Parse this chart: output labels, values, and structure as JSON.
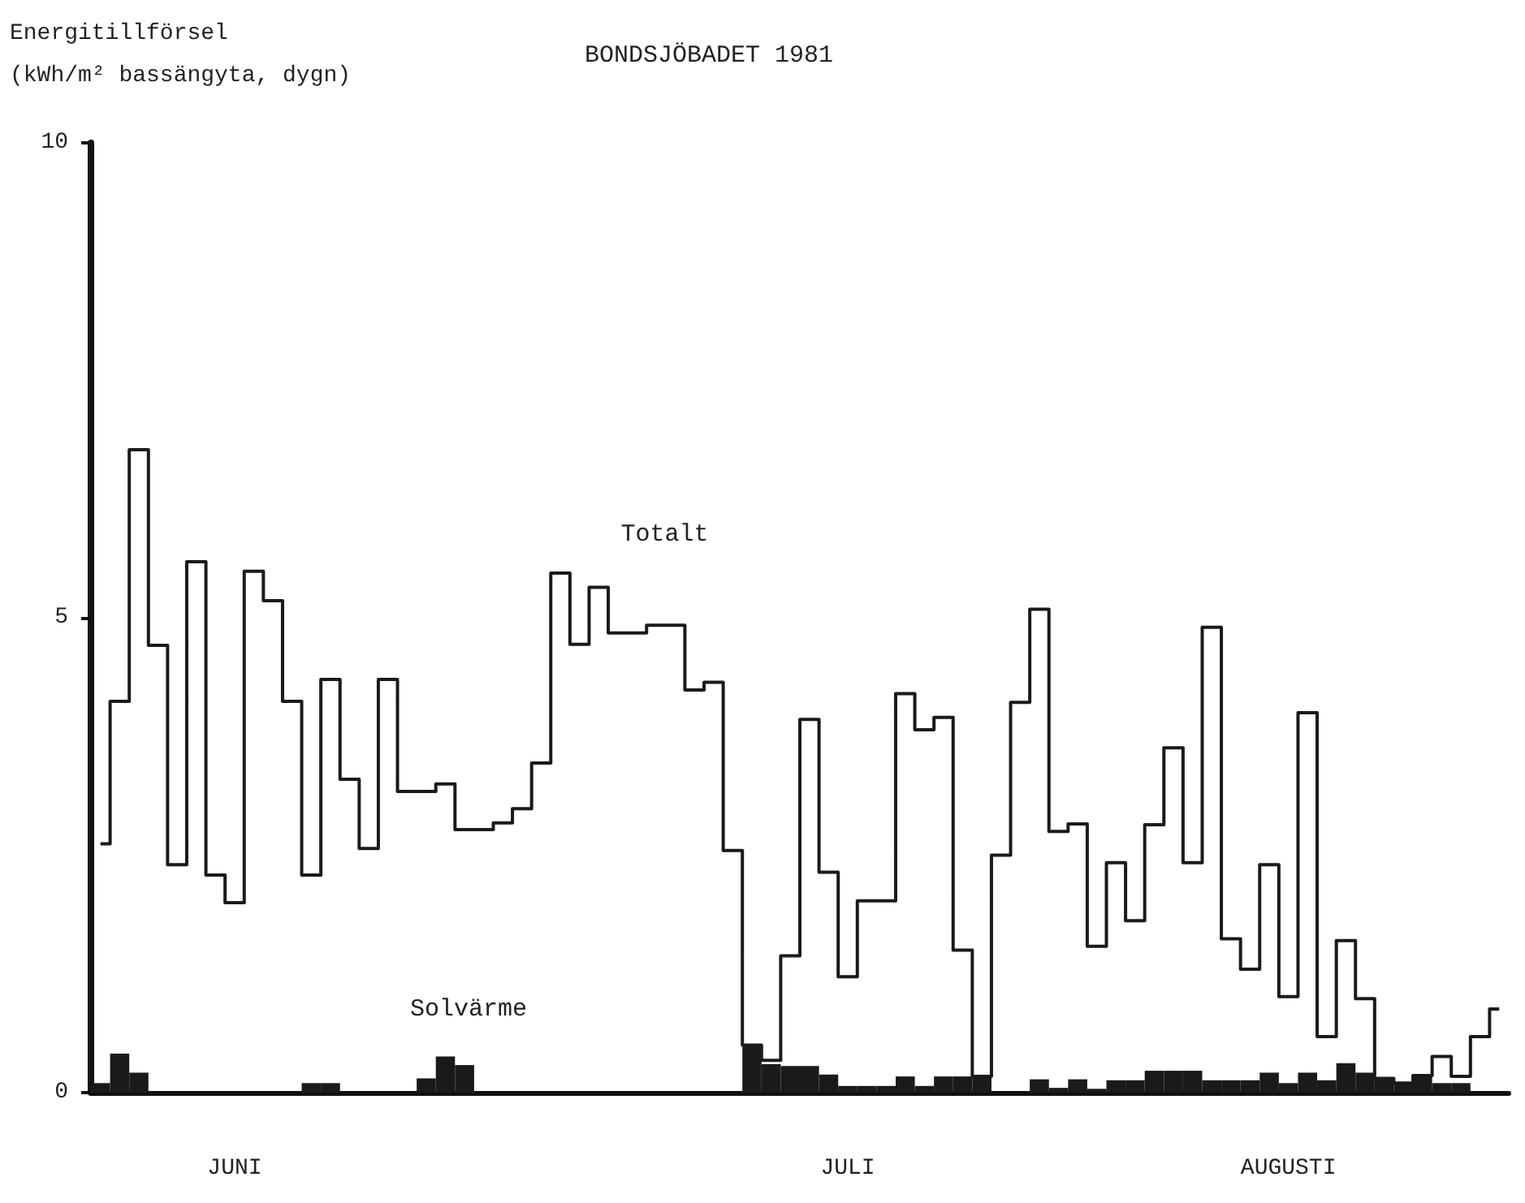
{
  "chart_data": {
    "type": "step",
    "title": "BONDSJÖBADET 1981",
    "ylabel": "Energitillförsel\n(kWh/m² bassängyta, dygn)",
    "categories": [
      null,
      null,
      null,
      null,
      null,
      null,
      null,
      "JUNI",
      null,
      null,
      null,
      null,
      null,
      null,
      null,
      null,
      null,
      null,
      null,
      null,
      null,
      null,
      null,
      null,
      null,
      null,
      null,
      null,
      null,
      null,
      null,
      null,
      null,
      null,
      null,
      null,
      null,
      null,
      null,
      "JULI",
      null,
      null,
      null,
      null,
      null,
      null,
      null,
      null,
      null,
      null,
      null,
      null,
      null,
      null,
      null,
      null,
      null,
      null,
      null,
      null,
      null,
      null,
      "AUGUSTI",
      null,
      null,
      null,
      null,
      null,
      null,
      null,
      null,
      null,
      null,
      null
    ],
    "series": [
      {
        "name": "Totalt",
        "color": "#1a1a1a",
        "values": [
          2.62,
          4.12,
          6.77,
          4.71,
          2.4,
          5.59,
          2.29,
          2.0,
          5.49,
          5.18,
          4.12,
          2.29,
          4.35,
          3.3,
          2.57,
          4.35,
          3.17,
          3.17,
          3.25,
          2.77,
          2.77,
          2.84,
          2.99,
          3.47,
          5.47,
          4.72,
          5.32,
          4.84,
          4.84,
          4.92,
          4.92,
          4.24,
          4.32,
          2.55,
          0.5,
          0.34,
          1.44,
          3.93,
          2.32,
          1.22,
          2.02,
          2.02,
          4.2,
          3.82,
          3.95,
          1.5,
          0.17,
          2.5,
          4.11,
          5.09,
          2.75,
          2.83,
          1.54,
          2.42,
          1.81,
          2.82,
          3.63,
          2.42,
          4.9,
          1.62,
          1.3,
          2.4,
          1.01,
          4.0,
          0.59,
          1.6,
          0.99,
          0.15,
          0.1,
          0.18,
          0.38,
          0.17,
          0.59,
          0.88
        ]
      },
      {
        "name": "Solvärme",
        "type": "bar",
        "color": "#1a1a1a",
        "values": [
          0.1,
          0.41,
          0.21,
          0,
          0,
          0,
          0,
          0,
          0,
          0,
          0,
          0.1,
          0.1,
          0,
          0,
          0,
          0,
          0.15,
          0.38,
          0.29,
          0,
          0,
          0,
          0,
          0,
          0,
          0,
          0,
          0,
          0,
          0,
          0,
          0,
          0,
          0.5,
          0.3,
          0.28,
          0.28,
          0.19,
          0.07,
          0.07,
          0.07,
          0.17,
          0.07,
          0.17,
          0.17,
          0.17,
          0,
          0,
          0.14,
          0.05,
          0.14,
          0.04,
          0.13,
          0.13,
          0.23,
          0.23,
          0.23,
          0.13,
          0.13,
          0.13,
          0.21,
          0.1,
          0.21,
          0.13,
          0.31,
          0.21,
          0.15,
          0.1,
          0.18,
          0.1,
          0.1,
          0,
          0
        ]
      }
    ],
    "ylim": [
      0,
      10
    ],
    "yticks": [
      0,
      5,
      10
    ],
    "grid": false,
    "legend": false
  }
}
